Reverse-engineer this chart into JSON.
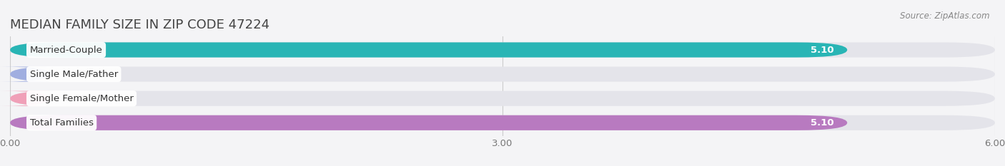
{
  "title": "MEDIAN FAMILY SIZE IN ZIP CODE 47224",
  "source": "Source: ZipAtlas.com",
  "categories": [
    "Married-Couple",
    "Single Male/Father",
    "Single Female/Mother",
    "Total Families"
  ],
  "values": [
    5.1,
    0.0,
    0.0,
    5.1
  ],
  "bar_colors": [
    "#29b5b5",
    "#a0aee0",
    "#f0a0b8",
    "#b87ac0"
  ],
  "bar_track_color": "#e4e4ea",
  "background_color": "#f4f4f6",
  "xlim": [
    0,
    6.0
  ],
  "xticks": [
    0.0,
    3.0,
    6.0
  ],
  "xticklabels": [
    "0.00",
    "3.00",
    "6.00"
  ],
  "bar_height": 0.62,
  "title_fontsize": 13,
  "tick_fontsize": 9.5,
  "label_fontsize": 9.5,
  "value_fontsize": 9.5
}
